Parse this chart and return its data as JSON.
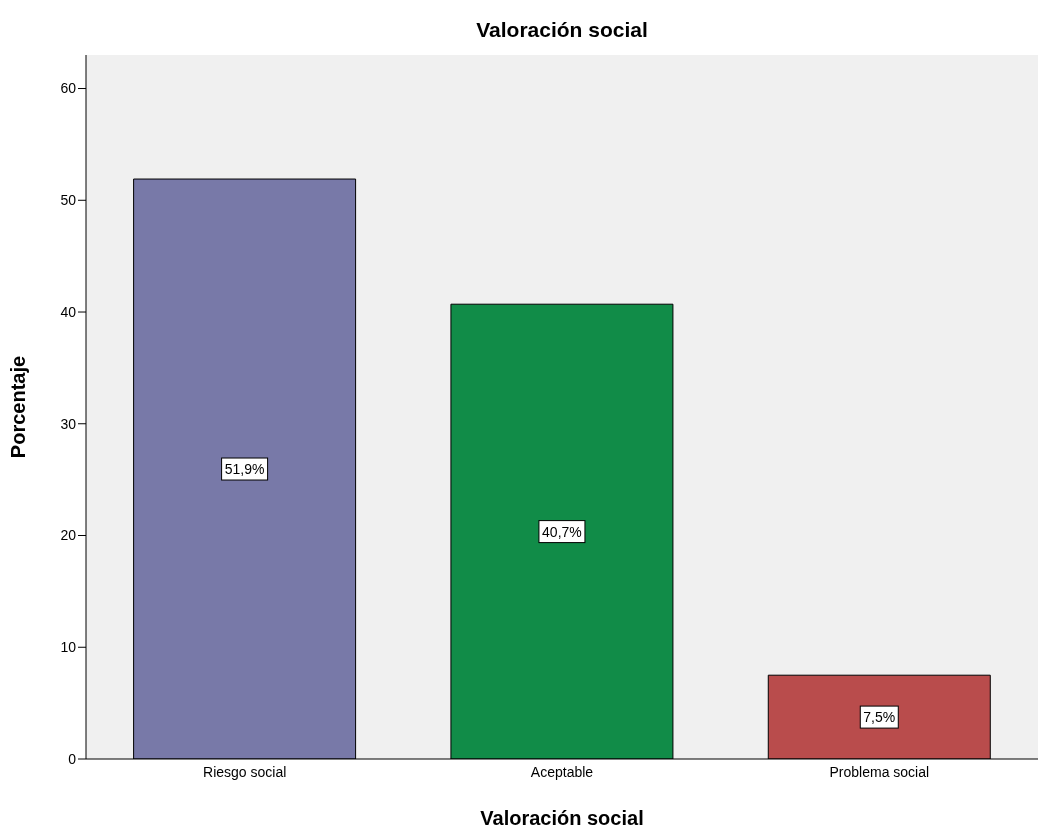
{
  "chart_data": {
    "type": "bar",
    "title": "Valoración social",
    "xlabel": "Valoración social",
    "ylabel": "Porcentaje",
    "categories": [
      "Riesgo social",
      "Aceptable",
      "Problema social"
    ],
    "values": [
      51.9,
      40.7,
      7.5
    ],
    "colors": [
      "#7879a8",
      "#118c48",
      "#b94c4c"
    ],
    "value_labels": [
      "51,9%",
      "40,7%",
      "7,5%"
    ],
    "ylim": [
      0,
      63
    ],
    "yticks": [
      0,
      10,
      20,
      30,
      40,
      50,
      60
    ],
    "grid": false
  }
}
